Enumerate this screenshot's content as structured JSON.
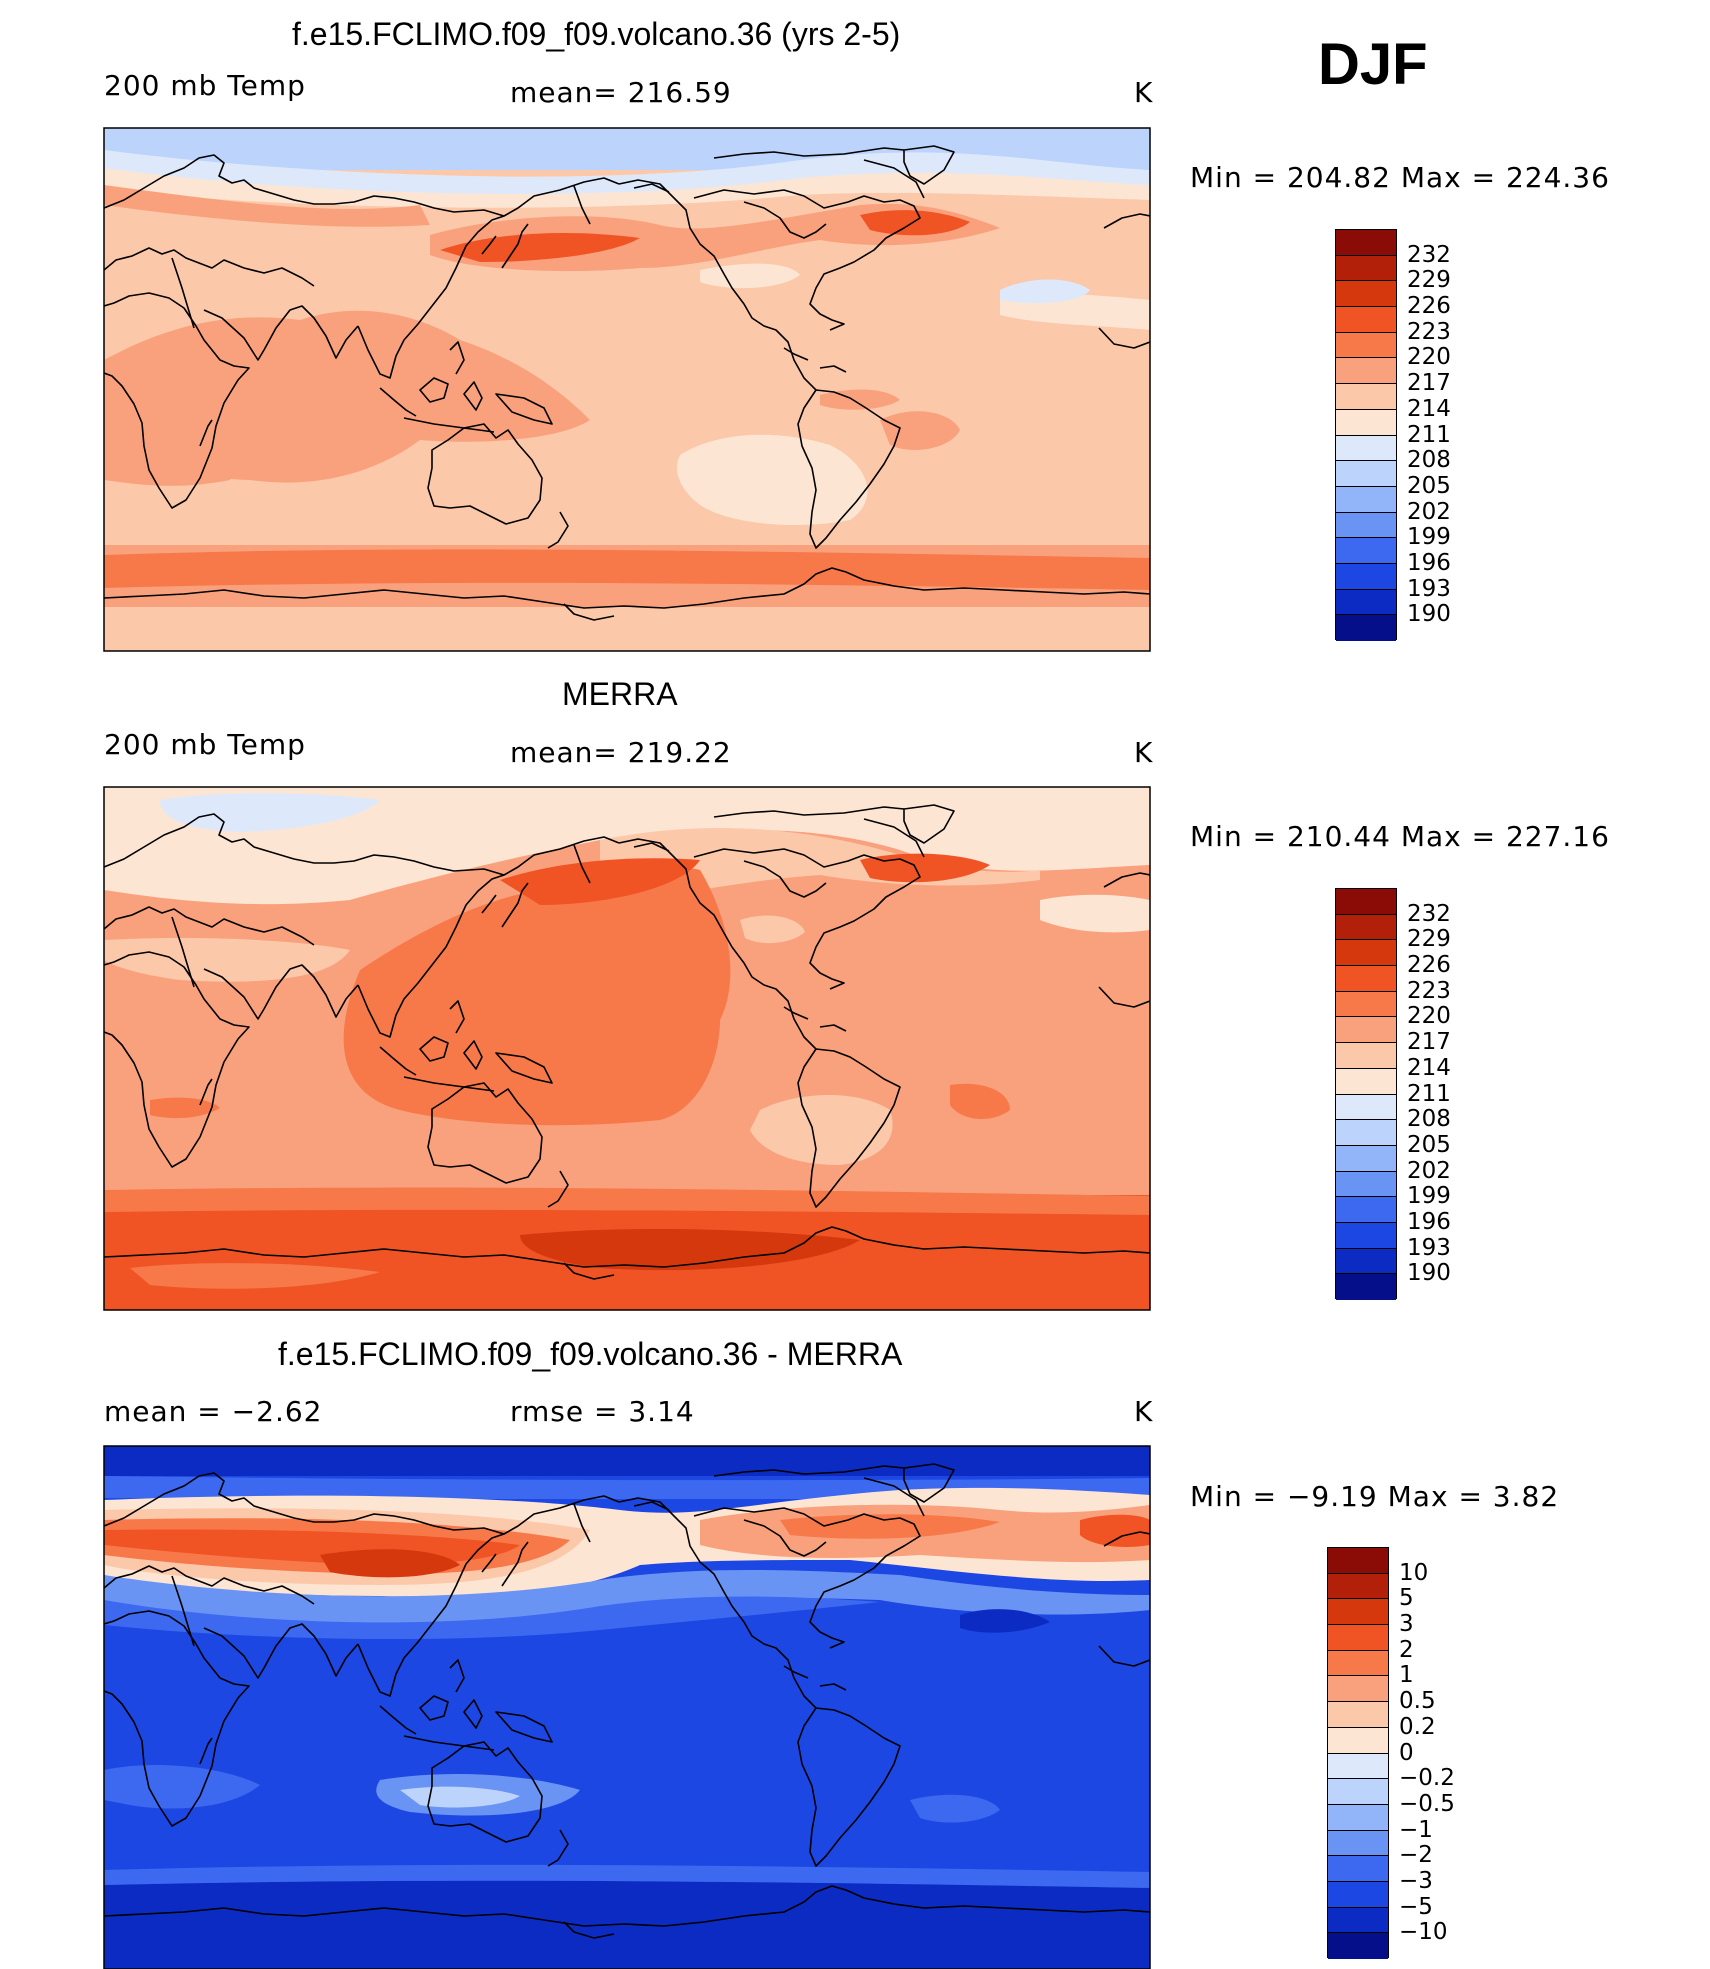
{
  "season": "DJF",
  "units": "K",
  "panels": [
    {
      "title": "f.e15.FCLIMO.f09_f09.volcano.36 (yrs 2-5)",
      "left_label": "200 mb Temp",
      "center_label": "mean=  216.59",
      "right_label": "K",
      "minmax": "Min  =  204.82  Max  =  224.36",
      "colorbar": {
        "labels": [
          "232",
          "229",
          "226",
          "223",
          "220",
          "217",
          "214",
          "211",
          "208",
          "205",
          "202",
          "199",
          "196",
          "193",
          "190"
        ],
        "colors": [
          "#8b0c06",
          "#b3200a",
          "#d6380e",
          "#f05425",
          "#f7794a",
          "#f9a17d",
          "#fcc8aa",
          "#fde5d3",
          "#dde9fb",
          "#bcd3fb",
          "#92b4f8",
          "#6a94f4",
          "#3c69f0",
          "#1d47e2",
          "#0c2bc2",
          "#060f8a"
        ]
      }
    },
    {
      "title": "MERRA",
      "left_label": "200 mb Temp",
      "center_label": "mean=  219.22",
      "right_label": "K",
      "minmax": "Min  =  210.44  Max  =  227.16",
      "colorbar": {
        "labels": [
          "232",
          "229",
          "226",
          "223",
          "220",
          "217",
          "214",
          "211",
          "208",
          "205",
          "202",
          "199",
          "196",
          "193",
          "190"
        ],
        "colors": [
          "#8b0c06",
          "#b3200a",
          "#d6380e",
          "#f05425",
          "#f7794a",
          "#f9a17d",
          "#fcc8aa",
          "#fde5d3",
          "#dde9fb",
          "#bcd3fb",
          "#92b4f8",
          "#6a94f4",
          "#3c69f0",
          "#1d47e2",
          "#0c2bc2",
          "#060f8a"
        ]
      }
    },
    {
      "title": "f.e15.FCLIMO.f09_f09.volcano.36 - MERRA",
      "left_label": "mean  =     −2.62",
      "center_label": "rmse  =     3.14",
      "right_label": "K",
      "minmax": "Min  =    −9.19  Max  =      3.82",
      "colorbar": {
        "labels": [
          "10",
          "5",
          "3",
          "2",
          "1",
          "0.5",
          "0.2",
          "0",
          "−0.2",
          "−0.5",
          "−1",
          "−2",
          "−3",
          "−5",
          "−10"
        ],
        "colors": [
          "#8b0c06",
          "#b3200a",
          "#d6380e",
          "#f05425",
          "#f7794a",
          "#f9a17d",
          "#fcc8aa",
          "#fde5d3",
          "#dde9fb",
          "#bcd3fb",
          "#92b4f8",
          "#6a94f4",
          "#3c69f0",
          "#1d47e2",
          "#0c2bc2",
          "#060f8a"
        ]
      }
    }
  ]
}
